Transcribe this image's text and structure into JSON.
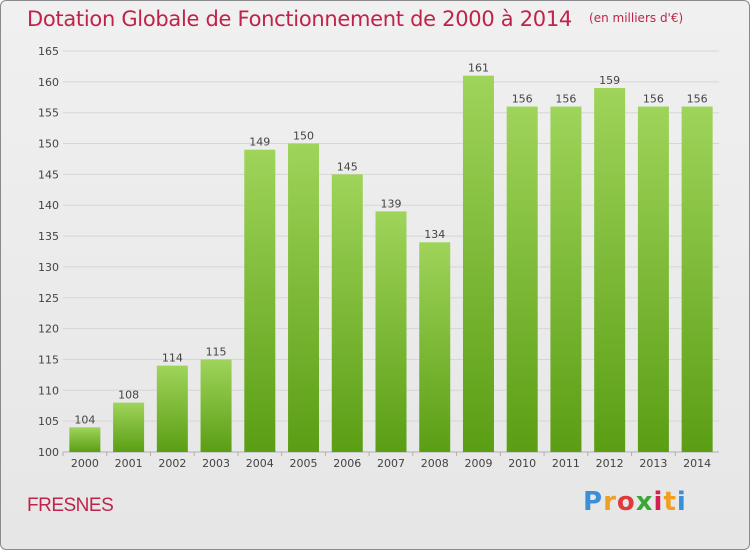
{
  "header": {
    "title": "Dotation Globale de Fonctionnement de 2000 à 2014",
    "unit": "(en milliers d'€)"
  },
  "footer": {
    "town": "FRESNES",
    "logo": [
      "P",
      "r",
      "o",
      "x",
      "i",
      "t",
      "i"
    ]
  },
  "colors": {
    "title": "#c0234a",
    "bar_top": "#9fd45a",
    "bar_bottom": "#5a9e14",
    "grid": "#d6d6d6"
  },
  "chart_data": {
    "type": "bar",
    "title": "Dotation Globale de Fonctionnement de 2000 à 2014",
    "subtitle": "(en milliers d'€)",
    "xlabel": "",
    "ylabel": "",
    "categories": [
      "2000",
      "2001",
      "2002",
      "2003",
      "2004",
      "2005",
      "2006",
      "2007",
      "2008",
      "2009",
      "2010",
      "2011",
      "2012",
      "2013",
      "2014"
    ],
    "values": [
      104,
      108,
      114,
      115,
      149,
      150,
      145,
      139,
      134,
      161,
      156,
      156,
      159,
      156,
      156
    ],
    "ylim": [
      100,
      165
    ],
    "yticks": [
      100,
      105,
      110,
      115,
      120,
      125,
      130,
      135,
      140,
      145,
      150,
      155,
      160,
      165
    ],
    "grid": true,
    "legend": "none"
  }
}
